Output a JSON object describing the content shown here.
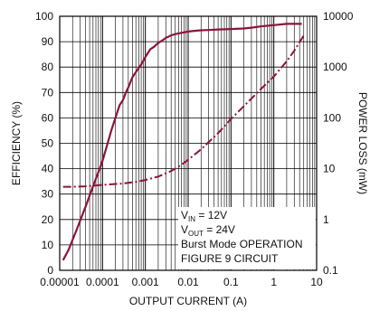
{
  "chart_data": {
    "type": "line",
    "title": "",
    "xlabel": "OUTPUT CURRENT (A)",
    "ylabel_left": "EFFICIENCY (%)",
    "ylabel_right": "POWER LOSS (mW)",
    "x_scale": "log",
    "xlim": [
      1e-05,
      10
    ],
    "ylim_left": [
      0,
      100
    ],
    "y_scale_right": "log",
    "ylim_right": [
      0.1,
      10000
    ],
    "grid": true,
    "x_ticks": [
      "0.00001",
      "0.0001",
      "0.001",
      "0.01",
      "0.1",
      "1",
      "10"
    ],
    "y_ticks_left": [
      "0",
      "10",
      "20",
      "30",
      "40",
      "50",
      "60",
      "70",
      "80",
      "90",
      "100"
    ],
    "y_ticks_right": [
      "0.1",
      "1",
      "10",
      "100",
      "1000",
      "10000"
    ],
    "colors": {
      "curve": "#8b1538",
      "grid": "#000000"
    },
    "annotation": {
      "vin_main": "V",
      "vin_sub": "IN",
      "vin_value": " = 12V",
      "vout_main": "V",
      "vout_sub": "OUT",
      "vout_value": " = 24V",
      "line3": "Burst Mode OPERATION",
      "line4": "FIGURE 9 CIRCUIT"
    },
    "series": [
      {
        "axis": "left",
        "style": "solid",
        "x": [
          1.2e-05,
          1.6e-05,
          2.5e-05,
          4e-05,
          6e-05,
          0.0001,
          0.00016,
          0.00025,
          0.0003,
          0.00035,
          0.0004,
          0.0005,
          0.0006,
          0.0008,
          0.001,
          0.0013,
          0.0016,
          0.002,
          0.0025,
          0.003,
          0.004,
          0.005,
          0.007,
          0.01,
          0.015,
          0.02,
          0.03,
          0.05,
          0.1,
          0.2,
          0.3,
          0.5,
          1,
          2,
          3,
          4.5
        ],
        "y": [
          4,
          8,
          16,
          25,
          33,
          43,
          55,
          65,
          67,
          70,
          72,
          76,
          78,
          81,
          84,
          87,
          88,
          89.5,
          90.5,
          91.5,
          92.5,
          93,
          93.5,
          94,
          94.3,
          94.5,
          94.6,
          94.8,
          95,
          95.2,
          95.5,
          96,
          96.5,
          97,
          97,
          97
        ]
      },
      {
        "axis": "right",
        "style": "dash-dot",
        "x": [
          1.2e-05,
          2e-05,
          4e-05,
          0.0001,
          0.0003,
          0.0006,
          0.001,
          0.002,
          0.004,
          0.007,
          0.01,
          0.02,
          0.05,
          0.1,
          0.2,
          0.5,
          1,
          2,
          3,
          5
        ],
        "y": [
          4.4,
          4.4,
          4.5,
          4.8,
          5.1,
          5.5,
          6,
          7,
          9,
          12,
          15,
          24,
          50,
          95,
          170,
          370,
          650,
          1300,
          2100,
          4200
        ]
      }
    ]
  }
}
